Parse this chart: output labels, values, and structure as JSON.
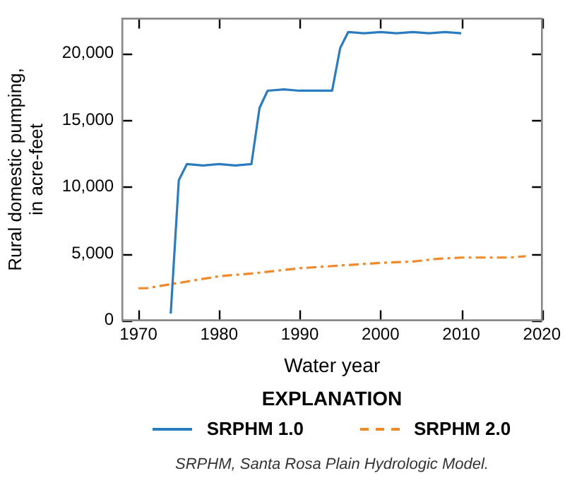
{
  "chart_data": {
    "type": "line",
    "xlabel": "Water year",
    "ylabel": "Rural domestic pumping,\nin acre-feet",
    "legend_title": "EXPLANATION",
    "legend": "bottom",
    "grid": false,
    "marker": "none",
    "xlim": [
      1968,
      2020
    ],
    "xticks": [
      1970,
      1980,
      1990,
      2000,
      2010,
      2020
    ],
    "ylim": [
      0,
      22600
    ],
    "yticks": [
      0,
      {
        "value": 5000,
        "label": "5,000"
      },
      {
        "value": 10000,
        "label": "10,000"
      },
      {
        "value": 15000,
        "label": "15,000"
      },
      {
        "value": 20000,
        "label": "20,000"
      }
    ],
    "series": [
      {
        "name": "SRPHM 1.0",
        "color": "#2b7bbf",
        "line_style": "solid",
        "x": [
          1974,
          1975,
          1976,
          1978,
          1980,
          1982,
          1984,
          1985,
          1986,
          1988,
          1990,
          1992,
          1994,
          1995,
          1996,
          1998,
          2000,
          2002,
          2004,
          2006,
          2008,
          2010
        ],
        "values": [
          500,
          10500,
          11700,
          11600,
          11700,
          11600,
          11700,
          15900,
          17200,
          17300,
          17200,
          17200,
          17200,
          20400,
          21600,
          21500,
          21600,
          21500,
          21600,
          21500,
          21600,
          21500
        ]
      },
      {
        "name": "SRPHM 2.0",
        "color": "#f0892a",
        "line_style": "dashed",
        "x": [
          1970,
          1971,
          1974,
          1977,
          1980,
          1984,
          1990,
          1995,
          2000,
          2004,
          2007,
          2010,
          2013,
          2016,
          2018
        ],
        "values": [
          2400,
          2400,
          2700,
          3000,
          3300,
          3500,
          3900,
          4100,
          4300,
          4400,
          4600,
          4700,
          4700,
          4700,
          4800
        ]
      }
    ],
    "annotations": [
      "SRPHM, Santa Rosa Plain Hydrologic Model."
    ]
  }
}
